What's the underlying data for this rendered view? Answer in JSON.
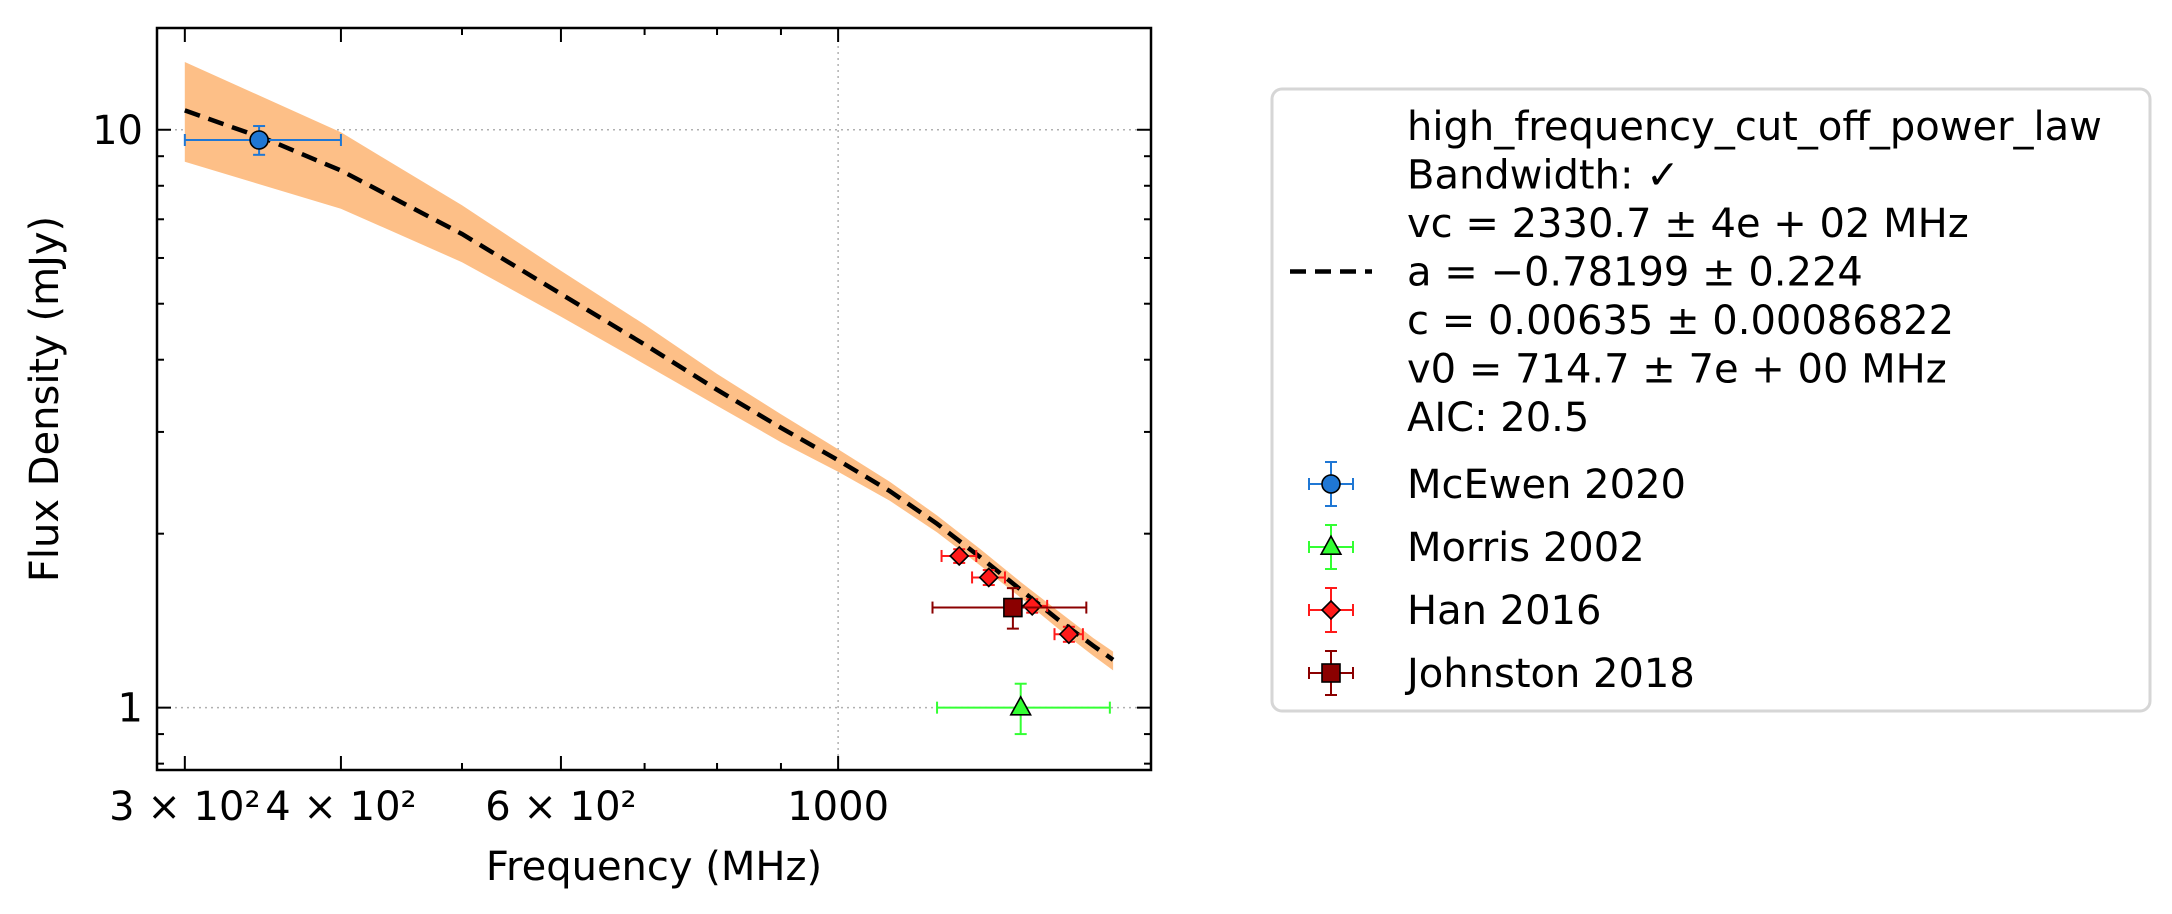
{
  "chart_data": {
    "type": "scatter",
    "xlabel": "Frequency (MHz)",
    "ylabel": "Flux Density (mJy)",
    "xscale": "log",
    "yscale": "log",
    "xlim": [
      285,
      1780
    ],
    "ylim": [
      0.78,
      15.0
    ],
    "grid": "dotted, major ticks only",
    "legend_position": "right, outside plot",
    "x_tick_labels": [
      {
        "value": 300,
        "label": "3 × 10²"
      },
      {
        "value": 400,
        "label": "4 × 10²"
      },
      {
        "value": 600,
        "label": "6 × 10²"
      },
      {
        "value": 1000,
        "label": "1000"
      }
    ],
    "y_tick_labels": [
      {
        "value": 1,
        "label": "1"
      },
      {
        "value": 10,
        "label": "10"
      }
    ],
    "fit": {
      "model_label": "high_frequency_cut_off_power_law",
      "legend_lines": [
        "high_frequency_cut_off_power_law",
        "Bandwidth: ✓",
        "vc = 2330.7 ± 4e + 02 MHz",
        "a = −0.78199 ± 0.224",
        "c = 0.00635 ± 0.00086822",
        "v0 = 714.7 ± 7e + 00 MHz",
        "AIC: 20.5"
      ],
      "line_style": "dashed",
      "line_color": "#000000",
      "band_color": "#fdbf87",
      "curve": [
        {
          "x": 300,
          "y": 10.8
        },
        {
          "x": 350,
          "y": 9.6
        },
        {
          "x": 400,
          "y": 8.5
        },
        {
          "x": 500,
          "y": 6.6
        },
        {
          "x": 600,
          "y": 5.2
        },
        {
          "x": 700,
          "y": 4.25
        },
        {
          "x": 800,
          "y": 3.55
        },
        {
          "x": 900,
          "y": 3.05
        },
        {
          "x": 1000,
          "y": 2.68
        },
        {
          "x": 1100,
          "y": 2.37
        },
        {
          "x": 1200,
          "y": 2.08
        },
        {
          "x": 1300,
          "y": 1.82
        },
        {
          "x": 1400,
          "y": 1.6
        },
        {
          "x": 1500,
          "y": 1.42
        },
        {
          "x": 1600,
          "y": 1.28
        },
        {
          "x": 1660,
          "y": 1.21
        }
      ],
      "band_upper": [
        {
          "x": 300,
          "y": 13.1
        },
        {
          "x": 400,
          "y": 9.9
        },
        {
          "x": 500,
          "y": 7.4
        },
        {
          "x": 600,
          "y": 5.7
        },
        {
          "x": 700,
          "y": 4.6
        },
        {
          "x": 800,
          "y": 3.78
        },
        {
          "x": 900,
          "y": 3.22
        },
        {
          "x": 1000,
          "y": 2.8
        },
        {
          "x": 1100,
          "y": 2.46
        },
        {
          "x": 1200,
          "y": 2.15
        },
        {
          "x": 1300,
          "y": 1.88
        },
        {
          "x": 1400,
          "y": 1.65
        },
        {
          "x": 1500,
          "y": 1.47
        },
        {
          "x": 1600,
          "y": 1.32
        },
        {
          "x": 1660,
          "y": 1.25
        }
      ],
      "band_lower": [
        {
          "x": 300,
          "y": 8.8
        },
        {
          "x": 400,
          "y": 7.3
        },
        {
          "x": 500,
          "y": 5.9
        },
        {
          "x": 600,
          "y": 4.75
        },
        {
          "x": 700,
          "y": 3.93
        },
        {
          "x": 800,
          "y": 3.33
        },
        {
          "x": 900,
          "y": 2.88
        },
        {
          "x": 1000,
          "y": 2.56
        },
        {
          "x": 1100,
          "y": 2.28
        },
        {
          "x": 1200,
          "y": 2.01
        },
        {
          "x": 1300,
          "y": 1.76
        },
        {
          "x": 1400,
          "y": 1.55
        },
        {
          "x": 1500,
          "y": 1.37
        },
        {
          "x": 1600,
          "y": 1.23
        },
        {
          "x": 1660,
          "y": 1.16
        }
      ]
    },
    "series": [
      {
        "name": "McEwen 2020",
        "marker": "circle",
        "color": "#1f77d4",
        "err_color": "#1f77d4",
        "points": [
          {
            "x": 344,
            "y": 9.6,
            "xerr_low": 44,
            "xerr_high": 56,
            "yerr_low": 0.55,
            "yerr_high": 0.55
          }
        ]
      },
      {
        "name": "Morris 2002",
        "marker": "triangle",
        "color": "#33ff33",
        "err_color": "#33ff33",
        "points": [
          {
            "x": 1400,
            "y": 1.0,
            "xerr_low": 200,
            "xerr_high": 250,
            "yerr_low": 0.1,
            "yerr_high": 0.1
          }
        ]
      },
      {
        "name": "Han 2016",
        "marker": "diamond",
        "color": "#ff1a1a",
        "err_color": "#ff1a1a",
        "points": [
          {
            "x": 1250,
            "y": 1.83,
            "xerr_low": 40,
            "xerr_high": 40,
            "yerr_low": 0.05,
            "yerr_high": 0.05
          },
          {
            "x": 1320,
            "y": 1.68,
            "xerr_low": 40,
            "xerr_high": 40,
            "yerr_low": 0.05,
            "yerr_high": 0.05
          },
          {
            "x": 1430,
            "y": 1.5,
            "xerr_low": 40,
            "xerr_high": 40,
            "yerr_low": 0.04,
            "yerr_high": 0.04
          },
          {
            "x": 1530,
            "y": 1.34,
            "xerr_low": 40,
            "xerr_high": 40,
            "yerr_low": 0.04,
            "yerr_high": 0.04
          }
        ]
      },
      {
        "name": "Johnston 2018",
        "marker": "square",
        "color": "#8b0000",
        "err_color": "#8b0000",
        "points": [
          {
            "x": 1380,
            "y": 1.49,
            "xerr_low": 190,
            "xerr_high": 200,
            "yerr_low": 0.12,
            "yerr_high": 0.12
          }
        ]
      }
    ]
  }
}
